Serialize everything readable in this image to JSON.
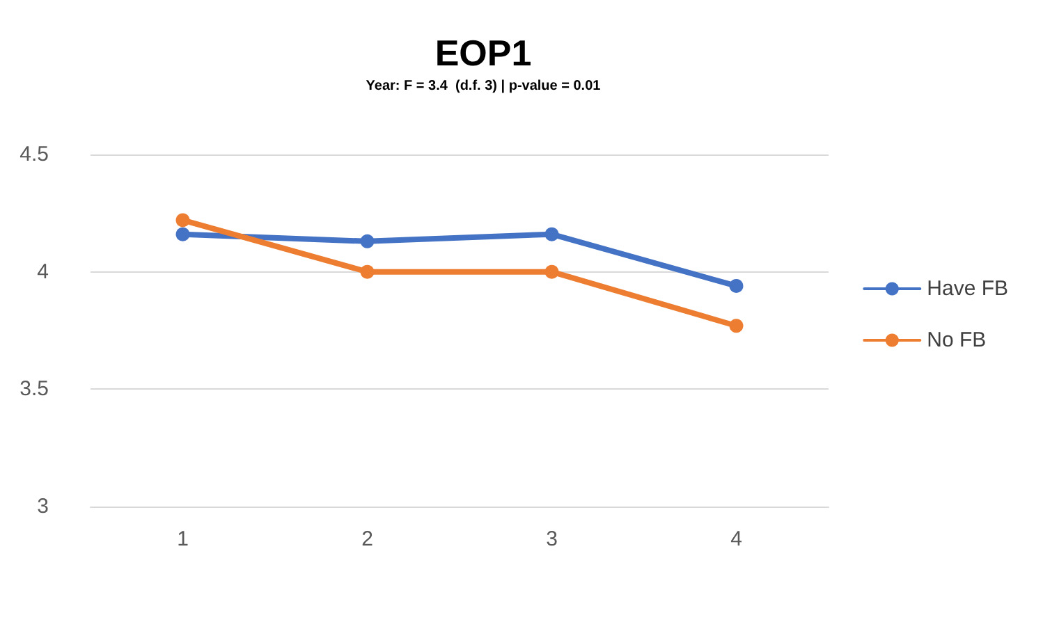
{
  "chart_data": {
    "type": "line",
    "title": "EOP1",
    "subtitle": "Year: F = 3.4  (d.f. 3) | p-value = 0.01",
    "categories": [
      "1",
      "2",
      "3",
      "4"
    ],
    "series": [
      {
        "name": "Have FB",
        "color": "#4472c4",
        "values": [
          4.16,
          4.13,
          4.16,
          3.94
        ]
      },
      {
        "name": "No FB",
        "color": "#ed7d31",
        "values": [
          4.22,
          4.0,
          4.0,
          3.77
        ]
      }
    ],
    "ylim": [
      3,
      4.5
    ],
    "yticks": [
      3,
      3.5,
      4,
      4.5
    ],
    "grid": "y",
    "legend": "right",
    "marker": "circle",
    "line_style": "solid"
  }
}
